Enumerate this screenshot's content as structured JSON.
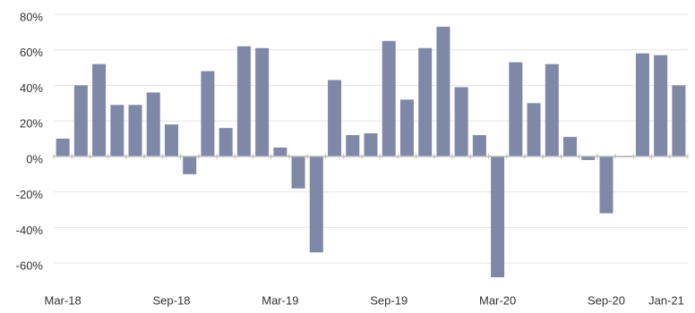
{
  "chart_data": {
    "type": "bar",
    "categories": [
      "Mar-18",
      null,
      null,
      null,
      null,
      null,
      "Sep-18",
      null,
      null,
      null,
      null,
      null,
      "Mar-19",
      null,
      null,
      null,
      null,
      null,
      "Sep-19",
      null,
      null,
      null,
      null,
      null,
      "Mar-20",
      null,
      null,
      null,
      null,
      null,
      "Sep-20",
      null,
      null,
      null,
      "Jan-21"
    ],
    "values": [
      10,
      40,
      52,
      29,
      29,
      36,
      18,
      -10,
      48,
      16,
      62,
      61,
      5,
      -18,
      -54,
      43,
      12,
      13,
      65,
      32,
      61,
      73,
      39,
      12,
      -68,
      53,
      30,
      52,
      11,
      -2,
      -32,
      0,
      58,
      57,
      40
    ],
    "color": "#7f89a7",
    "ylim": [
      -70,
      80
    ],
    "yticks": [
      {
        "value": -60,
        "label": "-60%"
      },
      {
        "value": -40,
        "label": "-40%"
      },
      {
        "value": -20,
        "label": "-20%"
      },
      {
        "value": 0,
        "label": "0%"
      },
      {
        "value": 20,
        "label": "20%"
      },
      {
        "value": 40,
        "label": "40%"
      },
      {
        "value": 60,
        "label": "60%"
      },
      {
        "value": 80,
        "label": "80%"
      }
    ],
    "grid": true
  }
}
